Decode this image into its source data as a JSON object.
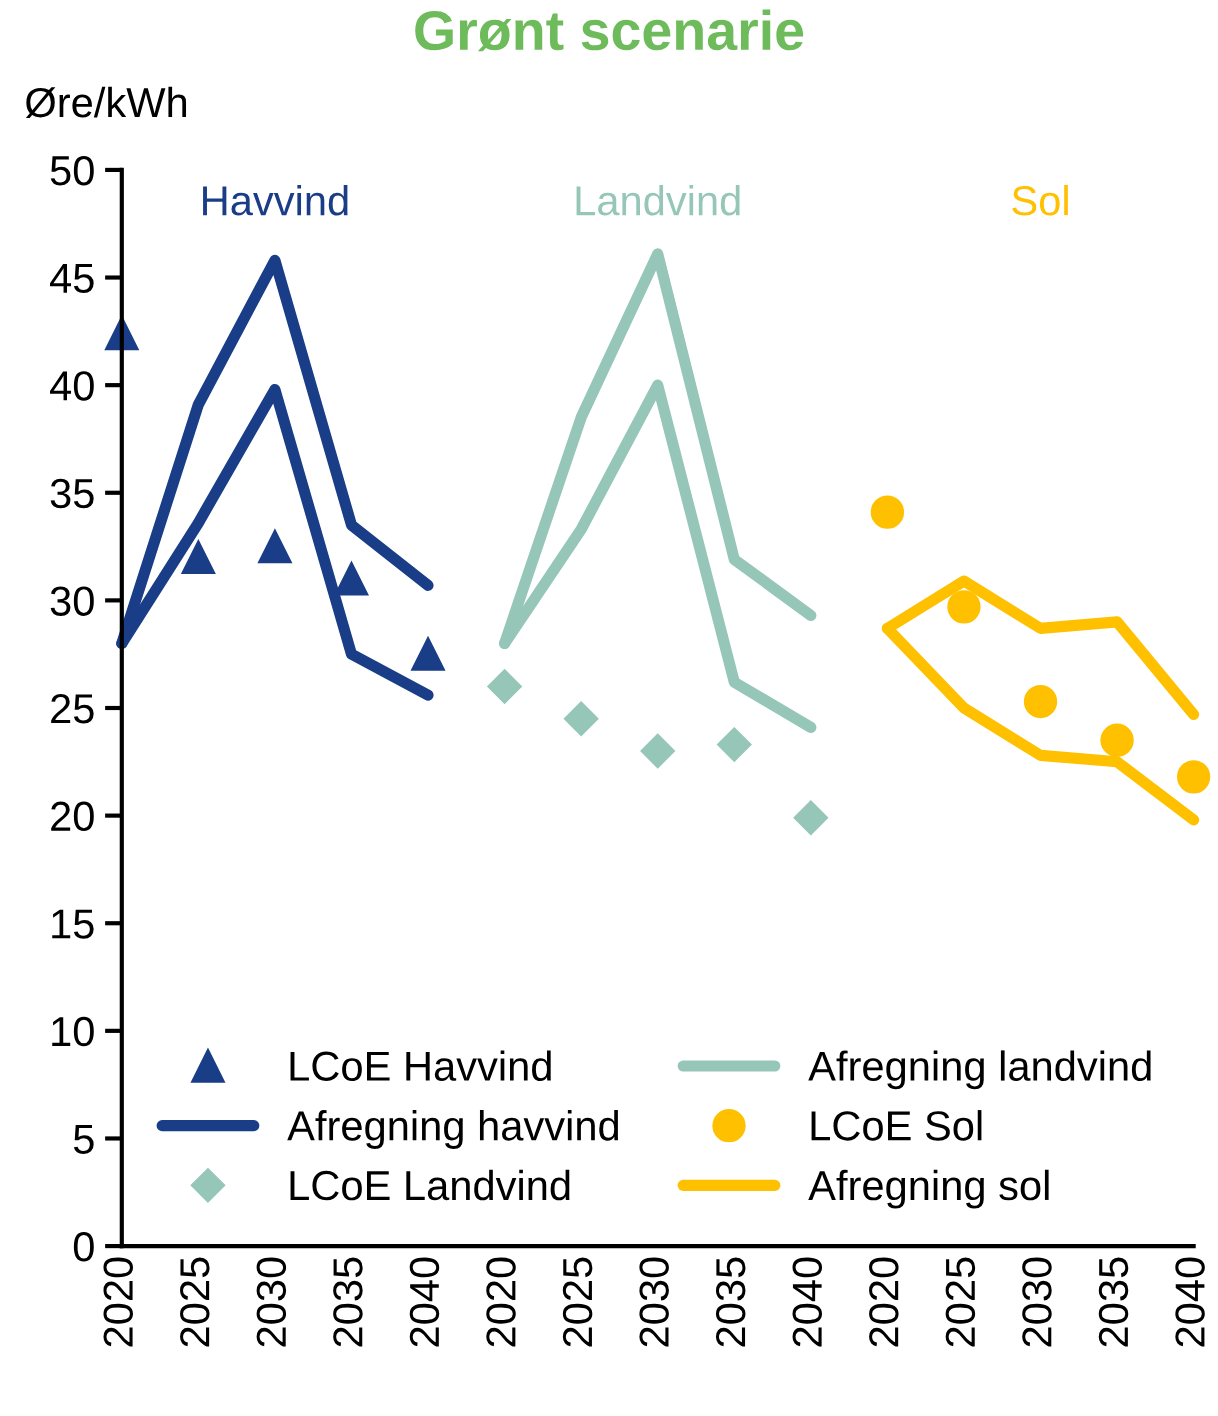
{
  "chart_data": {
    "type": "line",
    "title": "Grønt scenarie",
    "ylabel": "Øre/kWh",
    "annotations": [
      "Havvind",
      "Landvind",
      "Sol"
    ],
    "categories": [
      "2020",
      "2025",
      "2030",
      "2035",
      "2040",
      "2020",
      "2025",
      "2030",
      "2035",
      "2040",
      "2020",
      "2025",
      "2030",
      "2035",
      "2040"
    ],
    "ylim": [
      0,
      50
    ],
    "yticks": [
      0,
      5,
      10,
      15,
      20,
      25,
      30,
      35,
      40,
      45,
      50
    ],
    "grid": false,
    "legend": "bottom",
    "series": [
      {
        "name": "LCoE Havvind",
        "type": "scatter",
        "marker": "triangle",
        "color": "#1a3d87",
        "values": [
          42.4,
          32,
          32.5,
          31,
          27.5,
          null,
          null,
          null,
          null,
          null,
          null,
          null,
          null,
          null,
          null
        ]
      },
      {
        "name": "Afregning havvind",
        "marker": "none",
        "color": "#1a3d87",
        "values": [
          28,
          39.1,
          45.8,
          33.5,
          30.7,
          null,
          null,
          null,
          null,
          null,
          null,
          null,
          null,
          null,
          null
        ]
      },
      {
        "marker": "none",
        "color": "#1a3d87",
        "values": [
          28,
          33.6,
          39.8,
          27.5,
          25.6,
          null,
          null,
          null,
          null,
          null,
          null,
          null,
          null,
          null,
          null
        ]
      },
      {
        "name": "LCoE Landvind",
        "type": "scatter",
        "marker": "diamond",
        "color": "#95c6b8",
        "values": [
          null,
          null,
          null,
          null,
          null,
          26,
          24.5,
          23,
          23.3,
          19.9,
          null,
          null,
          null,
          null,
          null
        ]
      },
      {
        "name": "Afregning landvind",
        "marker": "none",
        "color": "#95c6b8",
        "values": [
          null,
          null,
          null,
          null,
          null,
          28,
          38.5,
          46.1,
          31.9,
          29.3,
          null,
          null,
          null,
          null,
          null
        ]
      },
      {
        "marker": "none",
        "color": "#95c6b8",
        "values": [
          null,
          null,
          null,
          null,
          null,
          28,
          33.3,
          40,
          26.2,
          24.1,
          null,
          null,
          null,
          null,
          null
        ]
      },
      {
        "name": "LCoE Sol",
        "type": "scatter",
        "marker": "circle",
        "color": "#ffc000",
        "values": [
          null,
          null,
          null,
          null,
          null,
          null,
          null,
          null,
          null,
          null,
          34.1,
          29.7,
          25.3,
          23.5,
          21.8
        ]
      },
      {
        "name": "Afregning sol",
        "marker": "none",
        "color": "#ffc000",
        "values": [
          null,
          null,
          null,
          null,
          null,
          null,
          null,
          null,
          null,
          null,
          28.7,
          30.9,
          28.7,
          29,
          24.7
        ]
      },
      {
        "marker": "none",
        "color": "#ffc000",
        "values": [
          null,
          null,
          null,
          null,
          null,
          null,
          null,
          null,
          null,
          null,
          28.7,
          25,
          22.8,
          22.5,
          19.8
        ]
      }
    ]
  }
}
